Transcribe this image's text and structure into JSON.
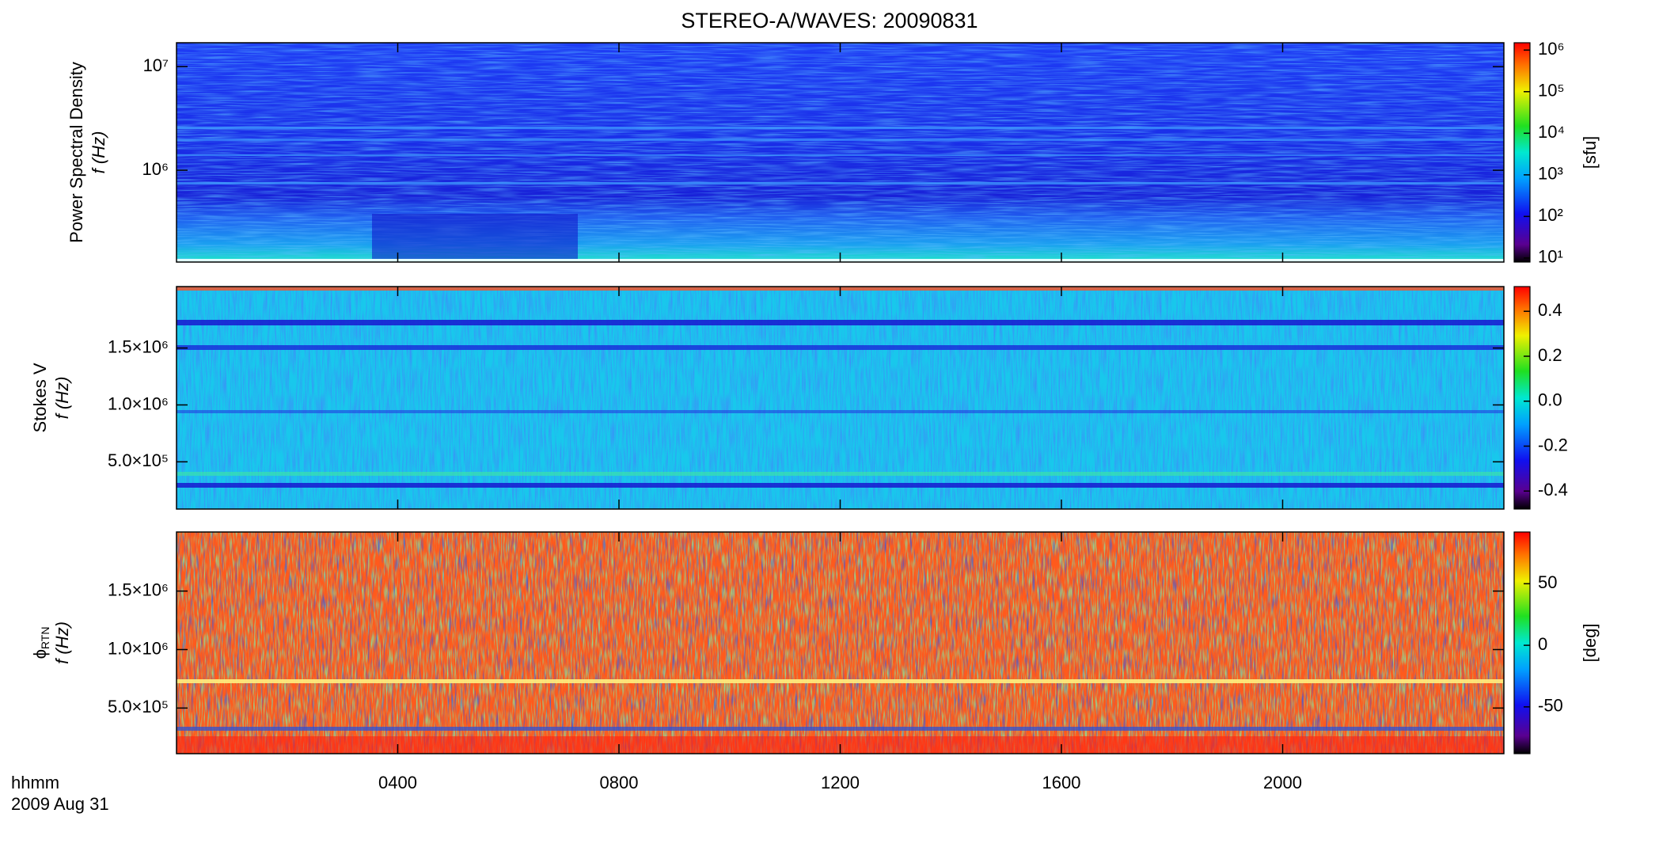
{
  "chart_data": [
    {
      "type": "heatmap",
      "title": "STEREO-A/WAVES: 20090831",
      "ylabel": "Power Spectral Density",
      "ylabel2": "f (Hz)",
      "ylog": true,
      "ylim": [
        130000,
        17000000
      ],
      "yticks": [
        {
          "value": 1000000,
          "label": "10⁶"
        },
        {
          "value": 10000000,
          "label": "10⁷"
        }
      ],
      "colorbar": {
        "log": true,
        "lim": [
          8,
          1500000
        ],
        "label": "[sfu]",
        "ticks": [
          {
            "value": 10,
            "label": "10¹"
          },
          {
            "value": 100,
            "label": "10²"
          },
          {
            "value": 1000,
            "label": "10³"
          },
          {
            "value": 10000,
            "label": "10⁴"
          },
          {
            "value": 100000,
            "label": "10⁵"
          },
          {
            "value": 1000000,
            "label": "10⁶"
          }
        ]
      }
    },
    {
      "type": "heatmap",
      "ylabel": "Stokes V",
      "ylabel2": "f (Hz)",
      "ylog": false,
      "ylim": [
        85000,
        2040000
      ],
      "yticks": [
        {
          "value": 500000,
          "label": "5.0×10⁵"
        },
        {
          "value": 1000000,
          "label": "1.0×10⁶"
        },
        {
          "value": 1500000,
          "label": "1.5×10⁶"
        }
      ],
      "colorbar": {
        "log": false,
        "lim": [
          -0.48,
          0.51
        ],
        "ticks": [
          -0.4,
          -0.2,
          {
            "value": 0,
            "label": "0.0"
          },
          0.2,
          0.4
        ]
      }
    },
    {
      "type": "heatmap",
      "ylabel": "ϕ",
      "ylabel_sub": "RTN",
      "ylabel2": "f (Hz)",
      "ylog": false,
      "ylim": [
        110000,
        2005000
      ],
      "yticks": [
        {
          "value": 500000,
          "label": "5.0×10⁵"
        },
        {
          "value": 1000000,
          "label": "1.0×10⁶"
        },
        {
          "value": 1500000,
          "label": "1.5×10⁶"
        }
      ],
      "colorbar": {
        "log": false,
        "lim": [
          -88,
          92
        ],
        "label": "[deg]",
        "ticks": [
          -50,
          0,
          50
        ]
      },
      "xlim": [
        0,
        24
      ],
      "xticks": [
        {
          "value": 4,
          "label": "0400"
        },
        {
          "value": 8,
          "label": "0800"
        },
        {
          "value": 12,
          "label": "1200"
        },
        {
          "value": 16,
          "label": "1600"
        },
        {
          "value": 20,
          "label": "2000"
        }
      ]
    }
  ],
  "footer": {
    "xunit": "hhmm",
    "date": "2009 Aug 31"
  }
}
